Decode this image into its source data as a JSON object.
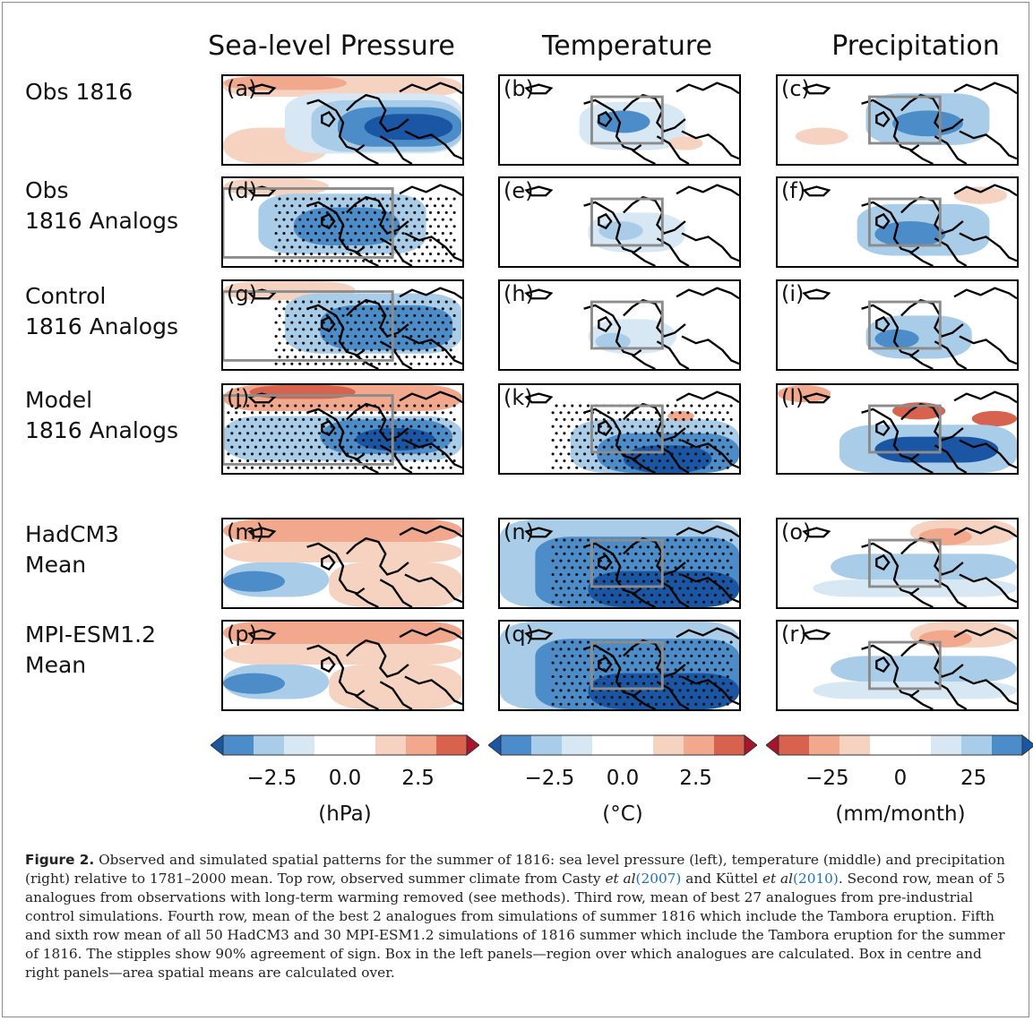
{
  "columns": [
    "Sea-level Pressure",
    "Temperature",
    "Precipitation"
  ],
  "rows": [
    {
      "label": "Obs 1816",
      "panels": [
        "(a)",
        "(b)",
        "(c)"
      ]
    },
    {
      "label": "Obs\n1816 Analogs",
      "panels": [
        "(d)",
        "(e)",
        "(f)"
      ]
    },
    {
      "label": "Control\n1816 Analogs",
      "panels": [
        "(g)",
        "(h)",
        "(i)"
      ]
    },
    {
      "label": "Model\n1816 Analogs",
      "panels": [
        "(j)",
        "(k)",
        "(l)"
      ]
    },
    {
      "label": "HadCM3\nMean",
      "panels": [
        "(m)",
        "(n)",
        "(o)"
      ]
    },
    {
      "label": "MPI-ESM1.2\nMean",
      "panels": [
        "(p)",
        "(q)",
        "(r)"
      ]
    }
  ],
  "colorbars": [
    {
      "ticks": [
        "−2.5",
        "0.0",
        "2.5"
      ],
      "unit": "(hPa)",
      "palette": "red-positive"
    },
    {
      "ticks": [
        "−2.5",
        "0.0",
        "2.5"
      ],
      "unit": "(°C)",
      "palette": "red-positive"
    },
    {
      "ticks": [
        "−25",
        "0",
        "25"
      ],
      "unit": "(mm/month)",
      "palette": "blue-positive"
    }
  ],
  "colors": {
    "dark_blue": "#1a56a4",
    "mid_blue": "#4c8cc8",
    "light_blue": "#a9cde8",
    "pale_blue": "#d7e8f4",
    "pale_red": "#f6d2c0",
    "light_red": "#f1a88c",
    "mid_red": "#d7624e",
    "dark_red": "#a8152b",
    "box_gray": "#8c8c8c"
  },
  "caption": {
    "label": "Figure 2.",
    "text_1": " Observed and simulated spatial patterns for the summer of 1816: sea level pressure (left), temperature (middle) and precipitation (right) relative to 1781–2000 mean. Top row, observed summer climate from Casty ",
    "etal_1": "et al",
    "cite_1": "(2007)",
    "text_2": " and Küttel ",
    "etal_2": "et al",
    "cite_2": "(2010)",
    "text_3": ". Second row, mean of 5 analogues from observations with long-term warming removed (see methods). Third row, mean of best 27 analogues from pre-industrial control simulations. Fourth row, mean of the best 2 analogues from simulations of summer 1816 which include the Tambora eruption. Fifth and sixth row mean of all 50 HadCM3 and 30 MPI-ESM1.2 simulations of 1816 summer which include the Tambora eruption for the summer of 1816. The stipples show 90% agreement of sign. Box in the left panels—region over which analogues are calculated. Box in centre and right panels—area spatial means are calculated over."
  }
}
